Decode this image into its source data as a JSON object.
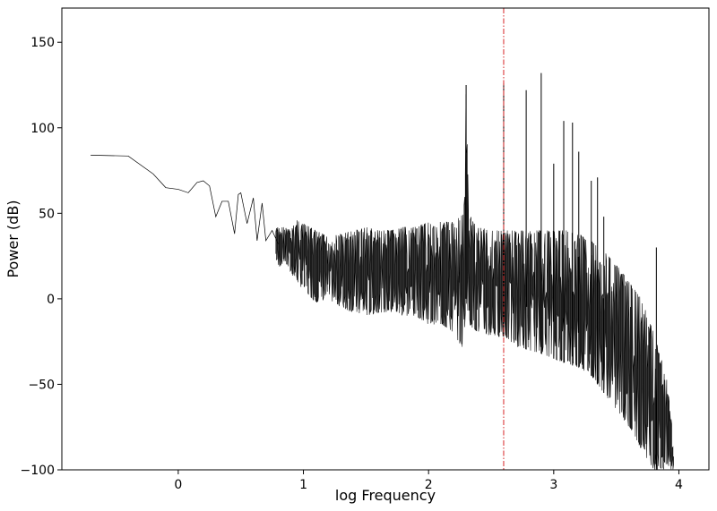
{
  "chart_data": {
    "type": "line",
    "title": "",
    "xlabel": "log Frequency",
    "ylabel": "Power (dB)",
    "xlim": [
      -0.93,
      4.24
    ],
    "ylim": [
      -100,
      170
    ],
    "x_ticks": [
      0,
      1,
      2,
      3,
      4
    ],
    "x_tick_labels": [
      "0",
      "1",
      "2",
      "3",
      "4"
    ],
    "y_ticks": [
      -100,
      -50,
      0,
      50,
      100,
      150
    ],
    "y_tick_labels": [
      "−100",
      "−50",
      "0",
      "50",
      "100",
      "150"
    ],
    "grid": false,
    "legend": "none",
    "series": [
      {
        "color": "#000000",
        "x": [
          -0.7,
          -0.4,
          -0.2,
          -0.1,
          0.0,
          0.08,
          0.15,
          0.2,
          0.25,
          0.3,
          0.35,
          0.4,
          0.45,
          0.48,
          0.5,
          0.55,
          0.6,
          0.63,
          0.67,
          0.7,
          0.75,
          0.8,
          0.85,
          0.9,
          0.95,
          1.0,
          1.1,
          1.2,
          1.3,
          1.4,
          1.5,
          1.6,
          1.7,
          1.8,
          1.9,
          2.0,
          2.1,
          2.2,
          2.28,
          2.3,
          2.32,
          2.4,
          2.5,
          2.6,
          2.7,
          2.8,
          2.9,
          3.0,
          3.1,
          3.2,
          3.3,
          3.4,
          3.5,
          3.6,
          3.7,
          3.8,
          3.9,
          3.96
        ],
        "y": [
          84,
          83.5,
          73,
          65,
          64,
          62,
          68,
          69,
          66,
          48,
          57,
          57,
          38,
          61,
          62,
          44,
          59,
          34,
          56,
          34,
          40,
          32,
          40,
          35,
          33,
          26,
          22,
          20,
          20,
          19,
          20,
          21,
          22,
          23,
          22,
          22,
          23,
          24,
          25,
          125,
          24,
          24,
          25,
          25,
          25,
          24,
          23,
          22,
          20,
          17,
          12,
          5,
          -5,
          -15,
          -28,
          -42,
          -62,
          -90
        ],
        "envelope_upper": [
          84,
          83.5,
          73,
          65,
          64,
          62,
          68,
          69,
          66,
          48,
          57,
          57,
          38,
          61,
          62,
          44,
          59,
          34,
          56,
          34,
          40,
          42,
          42,
          40,
          47,
          44,
          40,
          36,
          38,
          40,
          42,
          40,
          40,
          42,
          42,
          45,
          45,
          45,
          50,
          125,
          50,
          42,
          40,
          40,
          40,
          40,
          40,
          40,
          40,
          38,
          34,
          28,
          20,
          10,
          0,
          -20,
          -45,
          -85
        ],
        "envelope_lower": [
          84,
          83.5,
          73,
          65,
          64,
          62,
          68,
          69,
          66,
          48,
          57,
          57,
          38,
          61,
          62,
          44,
          59,
          34,
          56,
          34,
          32,
          18,
          22,
          15,
          10,
          5,
          -2,
          0,
          -5,
          -8,
          -10,
          -8,
          -8,
          -10,
          -10,
          -15,
          -15,
          -20,
          -30,
          0,
          -15,
          -20,
          -22,
          -22,
          -28,
          -30,
          -32,
          -35,
          -38,
          -40,
          -45,
          -55,
          -65,
          -75,
          -88,
          -100,
          -100,
          -100
        ],
        "spikes_x": [
          2.3,
          2.6,
          2.78,
          2.9,
          3.0,
          3.08,
          3.15,
          3.2,
          3.3,
          3.35,
          3.4,
          3.82
        ],
        "spikes_y": [
          125,
          126,
          122,
          132,
          79,
          104,
          103,
          86,
          69,
          71,
          48,
          30
        ]
      }
    ],
    "annotations": [
      {
        "type": "vline",
        "x": 2.6,
        "color": "#d62728",
        "style": "dash-dot"
      }
    ]
  }
}
